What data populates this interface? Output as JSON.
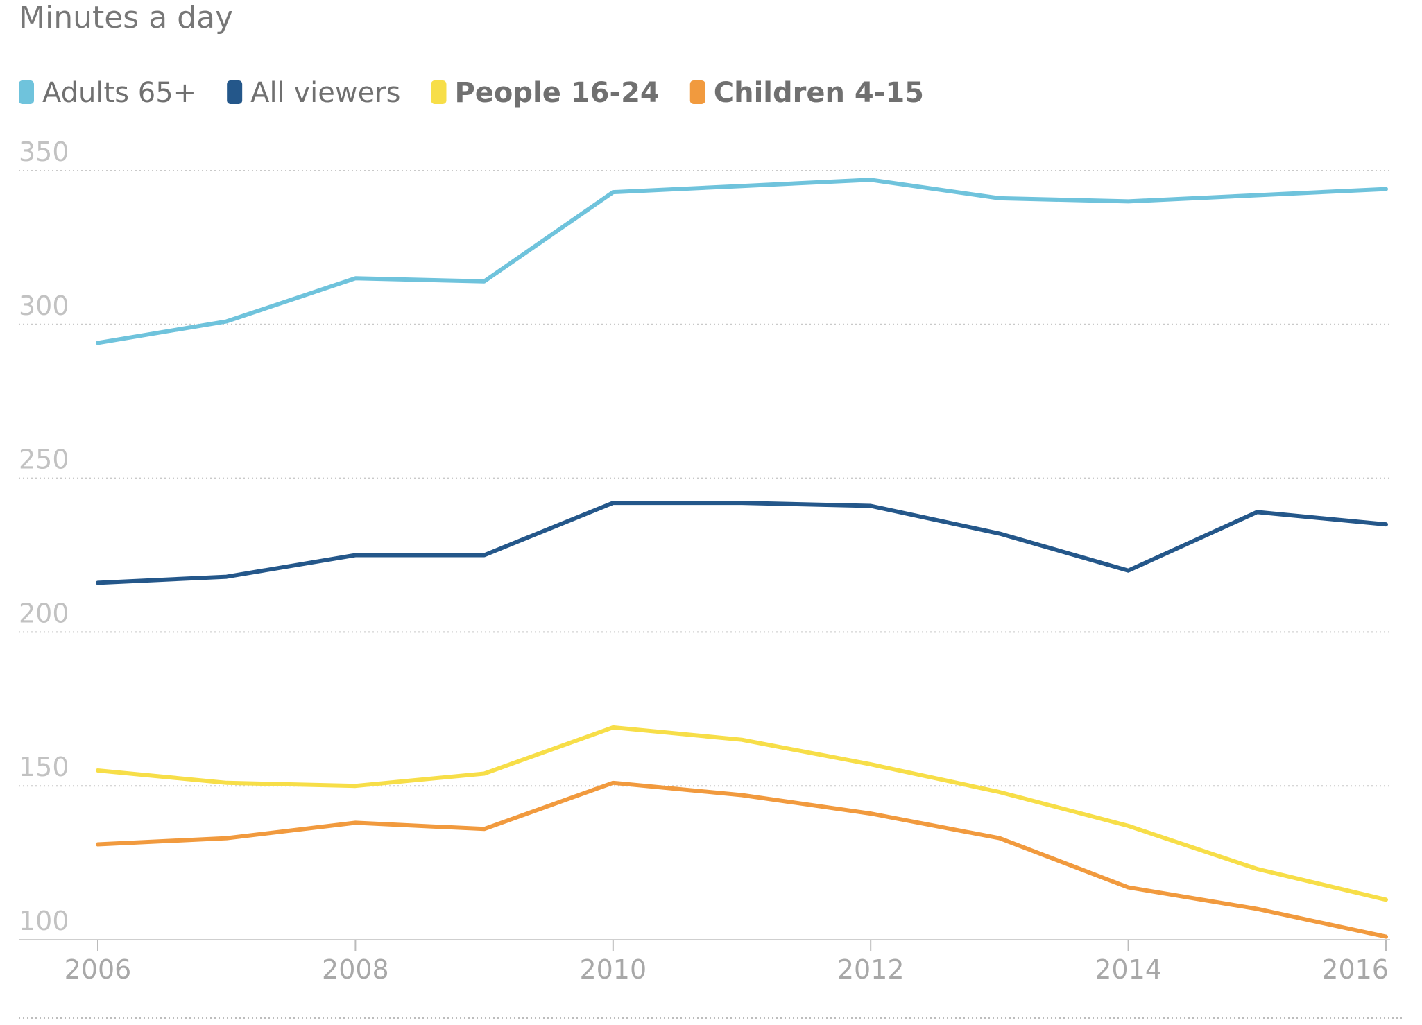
{
  "chart_data": {
    "type": "line",
    "unit_label": "Minutes a day",
    "x": [
      2006,
      2007,
      2008,
      2009,
      2010,
      2011,
      2012,
      2013,
      2014,
      2015,
      2016
    ],
    "xticks": [
      "2006",
      "2008",
      "2010",
      "2012",
      "2014",
      "2016"
    ],
    "yticks": [
      "350",
      "300",
      "250",
      "200",
      "150",
      "100"
    ],
    "ylim": [
      100,
      350
    ],
    "xlim": [
      2006,
      2016
    ],
    "grid": true,
    "legend_position": "top-left",
    "series": [
      {
        "name": "Adults 65+",
        "color": "#6fc3dc",
        "bold": false,
        "values": [
          294,
          301,
          315,
          314,
          343,
          345,
          347,
          341,
          340,
          342,
          344
        ]
      },
      {
        "name": "All viewers",
        "color": "#24578a",
        "bold": false,
        "values": [
          216,
          218,
          225,
          225,
          242,
          242,
          241,
          232,
          220,
          239,
          235
        ]
      },
      {
        "name": "People 16-24",
        "color": "#f7de48",
        "bold": true,
        "values": [
          155,
          151,
          150,
          154,
          169,
          165,
          157,
          148,
          137,
          123,
          113
        ]
      },
      {
        "name": "Children 4-15",
        "color": "#f19a3e",
        "bold": true,
        "values": [
          131,
          133,
          138,
          136,
          151,
          147,
          141,
          133,
          117,
          110,
          101
        ]
      }
    ]
  }
}
